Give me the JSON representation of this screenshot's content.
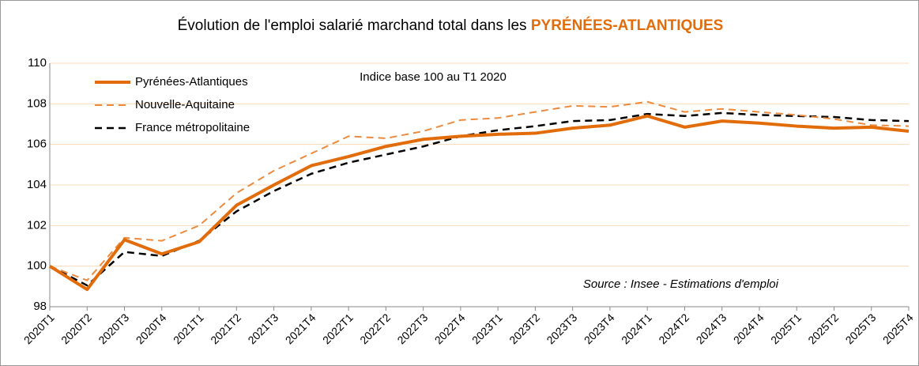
{
  "chart_data": {
    "type": "line",
    "title": "Évolution de l'emploi salarié marchand total dans les ",
    "title_highlight": "PYRÉNÉES-ATLANTIQUES",
    "annotations": [
      "Indice base 100 au T1 2020",
      "Source : Insee - Estimations d'emploi"
    ],
    "categories": [
      "2020T1",
      "2020T2",
      "2020T3",
      "2020T4",
      "2021T1",
      "2021T2",
      "2021T3",
      "2021T4",
      "2022T1",
      "2022T2",
      "2022T3",
      "2022T4",
      "2023T1",
      "2023T2",
      "2023T3",
      "2023T4",
      "2024T1",
      "2024T2",
      "2024T3",
      "2024T4",
      "2025T1",
      "2025T2",
      "2025T3",
      "2025T4"
    ],
    "series": [
      {
        "name": "Pyrénées-Atlantiques",
        "color": "#e36c0a",
        "style": "solid",
        "values": [
          100,
          98.85,
          101.3,
          100.6,
          101.2,
          103.0,
          104.0,
          104.95,
          105.4,
          105.9,
          106.25,
          106.4,
          106.5,
          106.55,
          106.8,
          106.95,
          107.4,
          106.85,
          107.15,
          107.05,
          106.9,
          106.8,
          106.85,
          106.65
        ]
      },
      {
        "name": "Nouvelle-Aquitaine",
        "color": "#ec8a3e",
        "style": "dashed",
        "values": [
          100,
          99.3,
          101.4,
          101.25,
          102.0,
          103.6,
          104.7,
          105.55,
          106.4,
          106.3,
          106.65,
          107.2,
          107.3,
          107.6,
          107.9,
          107.85,
          108.1,
          107.6,
          107.75,
          107.6,
          107.45,
          107.25,
          106.95,
          106.9
        ]
      },
      {
        "name": "France métropolitaine",
        "color": "#000000",
        "style": "dashed",
        "values": [
          100,
          99.05,
          100.7,
          100.5,
          101.25,
          102.7,
          103.7,
          104.55,
          105.1,
          105.5,
          105.9,
          106.4,
          106.7,
          106.9,
          107.15,
          107.2,
          107.5,
          107.4,
          107.55,
          107.45,
          107.4,
          107.35,
          107.2,
          107.15
        ]
      }
    ],
    "ylim": [
      98,
      110
    ],
    "yticks": [
      98,
      100,
      102,
      104,
      106,
      108,
      110
    ],
    "grid": true,
    "legend": "top-left"
  }
}
